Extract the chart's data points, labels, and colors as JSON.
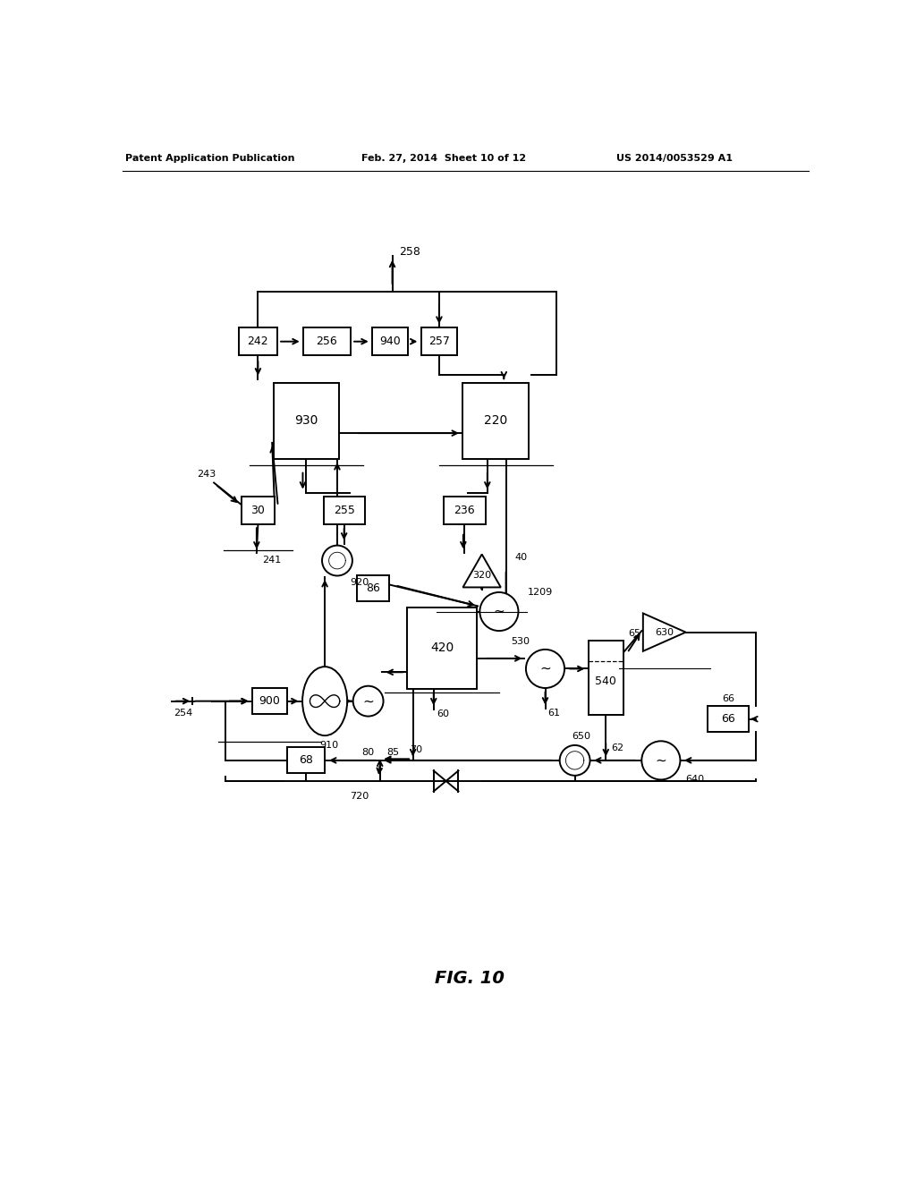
{
  "header_left": "Patent Application Publication",
  "header_mid": "Feb. 27, 2014  Sheet 10 of 12",
  "header_right": "US 2014/0053529 A1",
  "fig_label": "FIG. 10"
}
